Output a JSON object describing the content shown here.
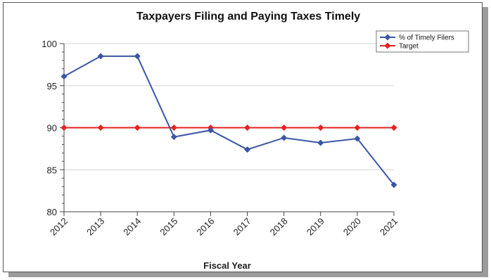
{
  "chart_data": {
    "type": "line",
    "title": "Taxpayers Filing and Paying Taxes Timely",
    "xlabel": "Fiscal Year",
    "ylabel": "",
    "categories": [
      "2012",
      "2013",
      "2014",
      "2015",
      "2016",
      "2017",
      "2018",
      "2019",
      "2020",
      "2021"
    ],
    "ylim": [
      80,
      100
    ],
    "yticks": [
      80,
      85,
      90,
      95,
      100
    ],
    "grid": true,
    "legend_position": "top-right",
    "series": [
      {
        "name": "% of Timely Filers",
        "color": "#3a56a5",
        "values": [
          96.1,
          98.5,
          98.5,
          88.9,
          89.7,
          87.4,
          88.8,
          88.2,
          88.7,
          83.2
        ]
      },
      {
        "name": "Target",
        "color": "#e42323",
        "values": [
          90,
          90,
          90,
          90,
          90,
          90,
          90,
          90,
          90,
          90
        ]
      }
    ]
  }
}
